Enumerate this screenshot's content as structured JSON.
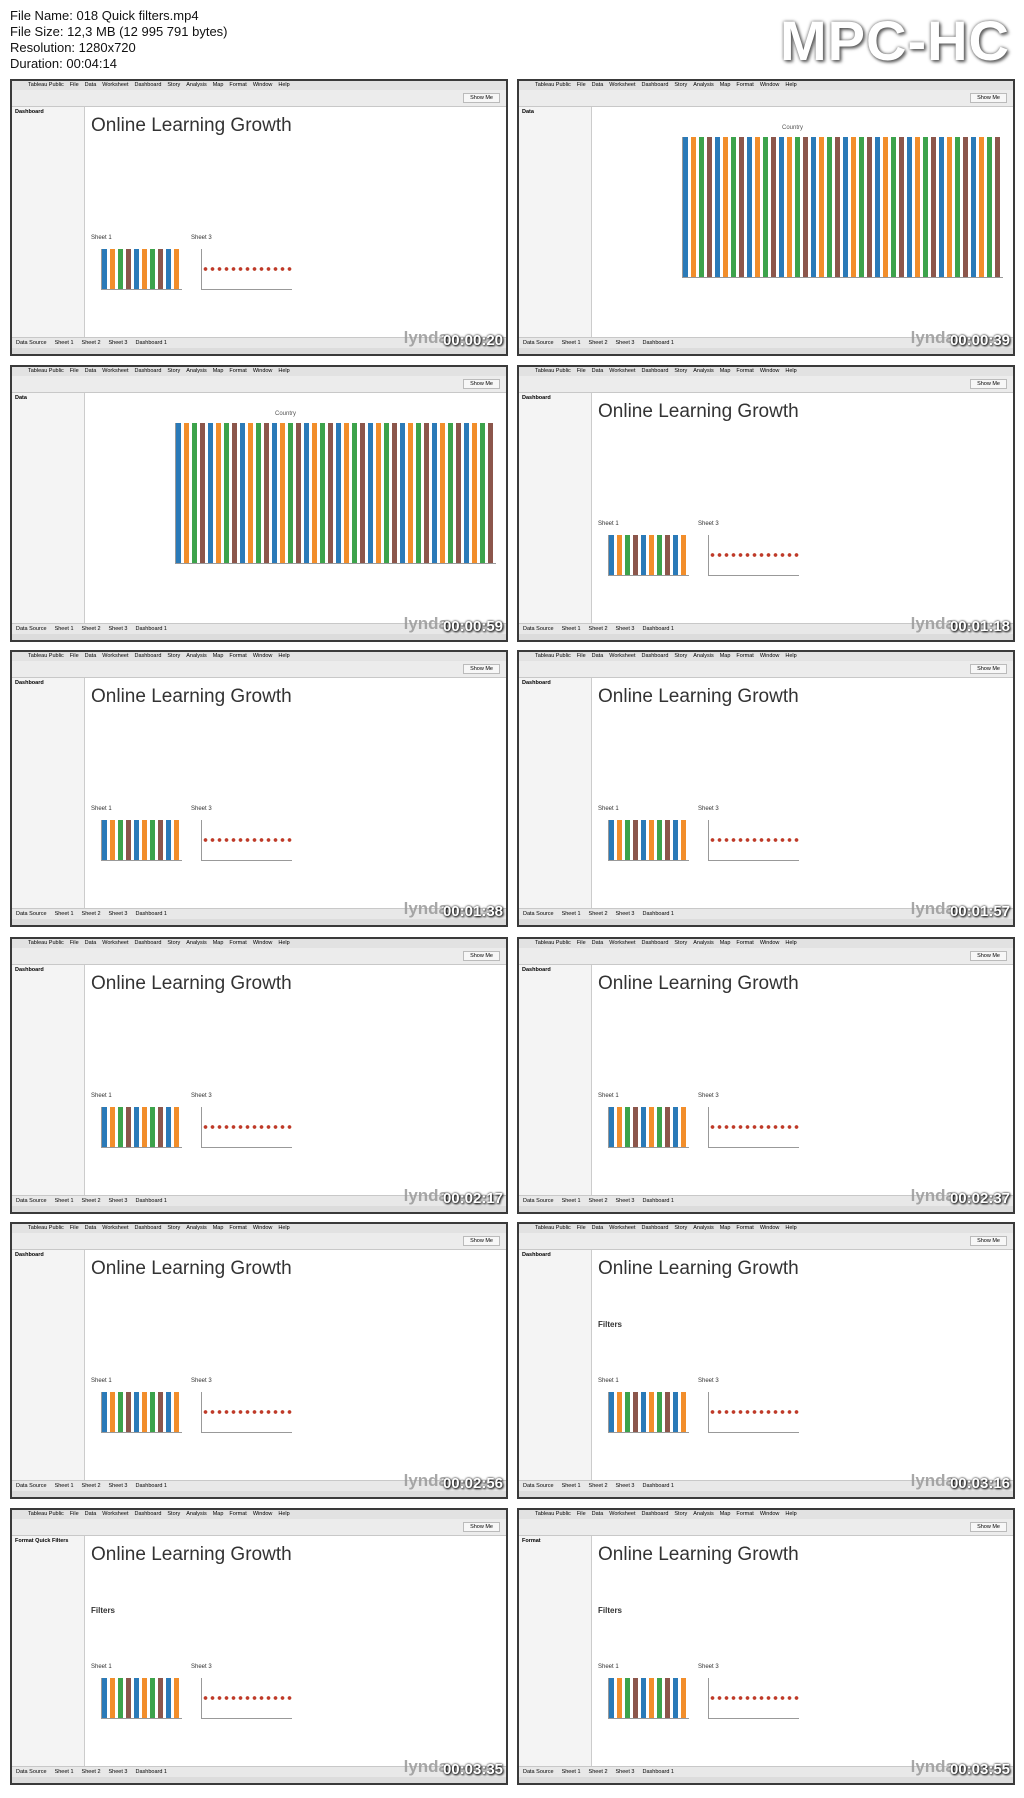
{
  "header": {
    "file_name": "File Name: 018 Quick filters.mp4",
    "file_size": "File Size: 12,3 MB (12 995 791 bytes)",
    "resolution": "Resolution: 1280x720",
    "duration": "Duration: 00:04:14"
  },
  "player": "MPC-HC",
  "watermark": "lynda",
  "menu": [
    "Tableau Public",
    "File",
    "Data",
    "Worksheet",
    "Dashboard",
    "Story",
    "Analysis",
    "Map",
    "Format",
    "Window",
    "Help"
  ],
  "show_me": "Show Me",
  "tabs": [
    "Data Source",
    "Sheet 1",
    "Sheet 2",
    "Sheet 3",
    "Dashboard 1"
  ],
  "thumbnails": [
    {
      "timestamp": "00:00:20",
      "sidebar_heading": "Dashboard",
      "title": "Online Learning Growth",
      "panels": [
        "Sheet 1",
        "Sheet 3"
      ]
    },
    {
      "timestamp": "00:00:39",
      "sidebar_heading": "Data",
      "chart_title": "Country"
    },
    {
      "timestamp": "00:00:59",
      "sidebar_heading": "Data",
      "chart_title": "Country"
    },
    {
      "timestamp": "00:01:18",
      "sidebar_heading": "Dashboard",
      "title": "Online Learning Growth",
      "panels": [
        "Sheet 1",
        "Sheet 3"
      ]
    },
    {
      "timestamp": "00:01:38",
      "sidebar_heading": "Dashboard",
      "title": "Online Learning Growth",
      "panels": [
        "Sheet 1",
        "Sheet 3"
      ]
    },
    {
      "timestamp": "00:01:57",
      "sidebar_heading": "Dashboard",
      "title": "Online Learning Growth",
      "panels": [
        "Sheet 1",
        "Sheet 3"
      ]
    },
    {
      "timestamp": "00:02:17",
      "sidebar_heading": "Dashboard",
      "title": "Online Learning Growth",
      "panels": [
        "Sheet 1",
        "Sheet 3"
      ]
    },
    {
      "timestamp": "00:02:37",
      "sidebar_heading": "Dashboard",
      "title": "Online Learning Growth",
      "panels": [
        "Sheet 1",
        "Sheet 3"
      ]
    },
    {
      "timestamp": "00:02:56",
      "sidebar_heading": "Dashboard",
      "title": "Online Learning Growth",
      "panels": [
        "Sheet 1",
        "Sheet 3"
      ]
    },
    {
      "timestamp": "00:03:16",
      "sidebar_heading": "Dashboard",
      "title": "Online Learning Growth",
      "filters": "Filters",
      "panels": [
        "Sheet 1",
        "Sheet 3"
      ]
    },
    {
      "timestamp": "00:03:35",
      "sidebar_heading": "Format Quick Filters",
      "title": "Online Learning Growth",
      "filters": "Filters",
      "panels": [
        "Sheet 1",
        "Sheet 3"
      ]
    },
    {
      "timestamp": "00:03:55",
      "sidebar_heading": "Format",
      "title": "Online Learning Growth",
      "filters": "Filters",
      "panels": [
        "Sheet 1",
        "Sheet 3"
      ]
    }
  ]
}
